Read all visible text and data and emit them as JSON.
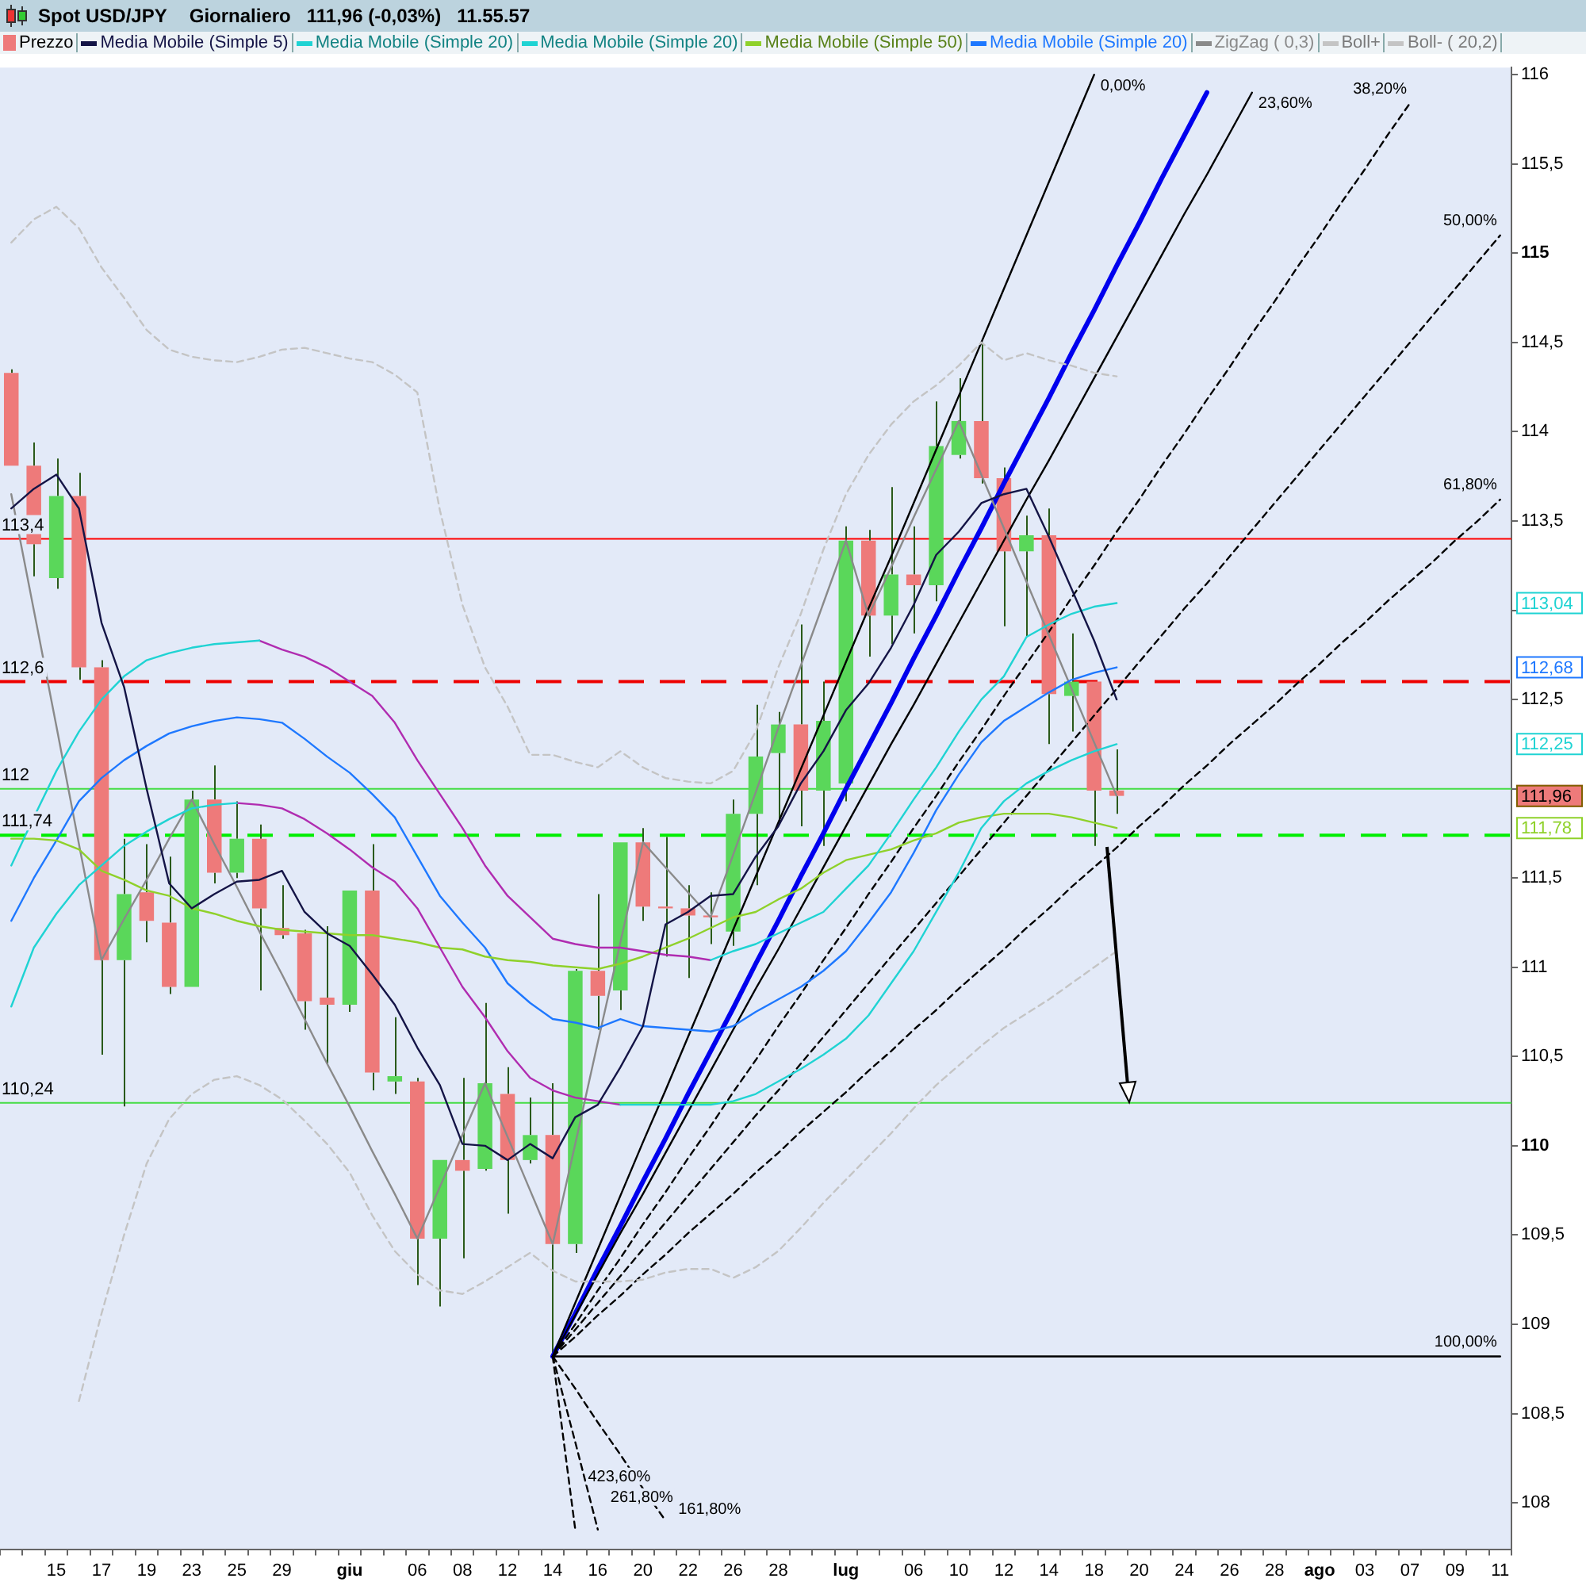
{
  "chart_data": {
    "type": "candlestick",
    "title": "Spot USD/JPY",
    "subtitle": "Giornaliero   111,96 (-0,03%)   11.55.57",
    "legend": "top left",
    "marker": "none",
    "categories": [
      null,
      null,
      "15",
      null,
      "17",
      null,
      "19",
      null,
      "23",
      null,
      "25",
      null,
      "29",
      null,
      null,
      "giu",
      null,
      null,
      "06",
      null,
      "08",
      null,
      "12",
      null,
      "14",
      null,
      "16",
      null,
      "20",
      null,
      "22",
      null,
      "26",
      null,
      "28",
      null,
      null,
      "lug",
      null,
      null,
      "06",
      null,
      "10",
      null,
      "12",
      null,
      "14",
      null,
      "18",
      null,
      "20",
      null,
      "24",
      null,
      "26",
      null,
      "28",
      null,
      "ago",
      null,
      "03",
      null,
      "07",
      null,
      "09",
      null,
      "11"
    ],
    "ylim": [
      107.74,
      116.04
    ],
    "yticks": [
      108,
      {
        "value": 108.5,
        "label": "108,5"
      },
      109,
      {
        "value": 109.5,
        "label": "109,5"
      },
      110,
      {
        "value": 110.5,
        "label": "110,5"
      },
      111,
      {
        "value": 111.5,
        "label": "111,5"
      },
      {
        "value": 112,
        "label": null
      },
      {
        "value": 112.5,
        "label": "112,5"
      },
      {
        "value": 113,
        "label": null
      },
      {
        "value": 113.5,
        "label": "113,5"
      },
      114,
      {
        "value": 114.5,
        "label": "114,5"
      },
      115,
      {
        "value": 115.5,
        "label": "115,5"
      },
      116
    ],
    "annotations": [
      {
        "text": "113,04",
        "y": 113.04
      },
      {
        "text": "112,68",
        "y": 112.68
      },
      {
        "text": "112,25",
        "y": 112.25
      },
      {
        "text": "111,96",
        "y": 111.96
      },
      {
        "text": "111,78",
        "y": 111.78
      }
    ],
    "ref_lines": [
      {
        "axis": "y",
        "value": 113.4,
        "label": "113,4",
        "color": "#ff0000"
      },
      {
        "axis": "y",
        "value": 112.6,
        "label": "112,6",
        "color": "#ee0000",
        "line_style": "dashed"
      },
      {
        "axis": "y",
        "value": 112,
        "label": "112",
        "color": "#44dd44"
      },
      {
        "axis": "y",
        "value": 111.74,
        "label": "111,74",
        "color": "#00ee00",
        "line_style": "dashed"
      },
      {
        "axis": "y",
        "value": 110.24,
        "label": "110,24",
        "color": "#44dd44"
      }
    ],
    "series": [
      {
        "name": "Prezzo",
        "ohlc": [
          [
            114.33,
            114.35,
            113.81,
            113.81
          ],
          [
            113.81,
            113.94,
            113.19,
            113.37
          ],
          [
            113.18,
            113.85,
            113.12,
            113.64
          ],
          [
            113.64,
            113.77,
            112.61,
            112.68
          ],
          [
            112.68,
            112.72,
            110.51,
            111.04
          ],
          [
            111.04,
            111.72,
            110.22,
            111.41
          ],
          [
            111.42,
            111.69,
            111.14,
            111.26
          ],
          [
            111.25,
            111.62,
            110.85,
            110.89
          ],
          [
            110.89,
            111.99,
            110.89,
            111.94
          ],
          [
            111.94,
            112.13,
            111.47,
            111.53
          ],
          [
            111.53,
            111.93,
            111.5,
            111.72
          ],
          [
            111.72,
            111.8,
            110.87,
            111.33
          ],
          [
            111.22,
            111.46,
            111.16,
            111.18
          ],
          [
            111.19,
            111.21,
            110.65,
            110.81
          ],
          [
            110.83,
            111.23,
            110.46,
            110.79
          ],
          [
            110.79,
            111.43,
            110.75,
            111.43
          ],
          [
            111.43,
            111.69,
            110.31,
            110.41
          ],
          [
            110.36,
            110.72,
            110.29,
            110.39
          ],
          [
            110.36,
            110.38,
            109.22,
            109.48
          ],
          [
            109.48,
            109.92,
            109.1,
            109.92
          ],
          [
            109.92,
            110.38,
            109.37,
            109.86
          ],
          [
            109.87,
            110.8,
            109.86,
            110.35
          ],
          [
            110.29,
            110.44,
            109.62,
            109.92
          ],
          [
            109.92,
            110.27,
            109.9,
            110.06
          ],
          [
            110.06,
            110.35,
            108.82,
            109.45
          ],
          [
            109.45,
            110.99,
            109.4,
            110.98
          ],
          [
            110.98,
            111.41,
            110.65,
            110.84
          ],
          [
            110.87,
            111.7,
            110.76,
            111.7
          ],
          [
            111.7,
            111.78,
            111.26,
            111.34
          ],
          [
            111.34,
            111.73,
            111.06,
            111.33
          ],
          [
            111.33,
            111.46,
            110.94,
            111.29
          ],
          [
            111.29,
            111.42,
            111.13,
            111.28
          ],
          [
            111.2,
            111.94,
            111.12,
            111.86
          ],
          [
            111.86,
            112.47,
            111.46,
            112.18
          ],
          [
            112.2,
            112.43,
            111.8,
            112.36
          ],
          [
            112.36,
            112.92,
            111.79,
            111.99
          ],
          [
            111.99,
            112.6,
            111.68,
            112.38
          ],
          [
            112.03,
            113.47,
            111.93,
            113.39
          ],
          [
            113.39,
            113.45,
            112.74,
            112.97
          ],
          [
            112.97,
            113.69,
            112.81,
            113.2
          ],
          [
            113.2,
            113.47,
            112.87,
            113.14
          ],
          [
            113.14,
            114.17,
            113.05,
            113.92
          ],
          [
            113.87,
            114.3,
            113.85,
            114.06
          ],
          [
            114.06,
            114.5,
            113.71,
            113.74
          ],
          [
            113.74,
            113.8,
            112.91,
            113.33
          ],
          [
            113.33,
            113.53,
            112.85,
            113.42
          ],
          [
            113.42,
            113.57,
            112.25,
            112.53
          ],
          [
            112.52,
            112.87,
            112.32,
            112.6
          ],
          [
            112.6,
            112.6,
            111.68,
            111.99
          ],
          [
            111.99,
            112.22,
            111.86,
            111.96
          ],
          null,
          null,
          null,
          null,
          null,
          null,
          null,
          null,
          null,
          null,
          null,
          null,
          null,
          null,
          null,
          null,
          null
        ],
        "colors": [
          "#ee7a7a",
          "#ee7a7a",
          "#5ad75a",
          "#ee7a7a",
          "#ee7a7a",
          "#5ad75a",
          "#ee7a7a",
          "#ee7a7a",
          "#5ad75a",
          "#ee7a7a",
          "#5ad75a",
          "#ee7a7a",
          "#ee7a7a",
          "#ee7a7a",
          "#ee7a7a",
          "#5ad75a",
          "#ee7a7a",
          "#5ad75a",
          "#ee7a7a",
          "#5ad75a",
          "#ee7a7a",
          "#5ad75a",
          "#ee7a7a",
          "#5ad75a",
          "#ee7a7a",
          "#5ad75a",
          "#ee7a7a",
          "#5ad75a",
          "#ee7a7a",
          "#ee7a7a",
          "#ee7a7a",
          "#ee7a7a",
          "#5ad75a",
          "#5ad75a",
          "#5ad75a",
          "#ee7a7a",
          "#5ad75a",
          "#5ad75a",
          "#ee7a7a",
          "#5ad75a",
          "#ee7a7a",
          "#5ad75a",
          "#5ad75a",
          "#ee7a7a",
          "#ee7a7a",
          "#5ad75a",
          "#ee7a7a",
          "#5ad75a",
          "#ee7a7a",
          "#ee7a7a",
          null,
          null,
          null,
          null,
          null,
          null,
          null,
          null,
          null,
          null,
          null,
          null,
          null,
          null,
          null,
          null,
          null
        ]
      },
      {
        "name": "Media Mobile (Simple 5)",
        "type": "line",
        "color": "#141446",
        "values": [
          113.57,
          113.68,
          113.76,
          113.57,
          112.93,
          112.57,
          112.0,
          111.47,
          111.33,
          111.41,
          111.48,
          111.49,
          111.54,
          111.31,
          111.19,
          111.12,
          110.96,
          110.79,
          110.55,
          110.34,
          110.01,
          110.0,
          109.92,
          110.01,
          109.93,
          110.16,
          110.23,
          110.44,
          110.67,
          111.24,
          111.31,
          111.4,
          111.41,
          111.62,
          111.79,
          112.03,
          112.21,
          112.44,
          112.59,
          112.79,
          113.03,
          113.31,
          113.44,
          113.6,
          113.65,
          113.68,
          113.41,
          113.12,
          112.83,
          112.5,
          null,
          null,
          null,
          null,
          null,
          null,
          null,
          null,
          null,
          null,
          null,
          null,
          null,
          null,
          null,
          null,
          null
        ]
      },
      {
        "name": "Media Mobile (Simple 20)",
        "type": "line",
        "color": "#1fd3d3",
        "values": [
          111.57,
          111.84,
          112.1,
          112.32,
          112.5,
          112.63,
          112.72,
          112.76,
          112.79,
          112.81,
          112.82,
          112.83,
          null,
          null,
          null,
          null,
          null,
          null,
          null,
          null,
          null,
          null,
          null,
          null,
          null,
          null,
          null,
          null,
          null,
          null,
          null,
          111.04,
          111.09,
          111.13,
          111.19,
          111.25,
          111.31,
          111.44,
          111.57,
          111.75,
          111.94,
          112.12,
          112.32,
          112.5,
          112.63,
          112.85,
          112.92,
          112.98,
          113.02,
          113.04,
          null,
          null,
          null,
          null,
          null,
          null,
          null,
          null,
          null,
          null,
          null,
          null,
          null,
          null,
          null,
          null,
          null
        ]
      },
      {
        "type": "line",
        "color": "#b02cb0",
        "values": [
          null,
          null,
          null,
          null,
          null,
          null,
          null,
          null,
          null,
          null,
          null,
          112.83,
          112.78,
          112.74,
          112.68,
          112.6,
          112.52,
          112.37,
          112.16,
          111.97,
          111.78,
          111.57,
          111.4,
          111.28,
          111.16,
          111.13,
          111.11,
          111.11,
          111.09,
          111.07,
          111.06,
          111.04,
          null,
          null,
          null,
          null,
          null,
          null,
          null,
          null,
          null,
          null,
          null,
          null,
          null,
          null,
          null,
          null,
          null,
          null,
          null,
          null,
          null,
          null,
          null,
          null,
          null,
          null,
          null,
          null,
          null,
          null,
          null,
          null,
          null,
          null,
          null
        ]
      },
      {
        "name": "Media Mobile (Simple 20)",
        "type": "line",
        "color": "#1fd3d3",
        "values": [
          110.78,
          111.11,
          111.3,
          111.46,
          111.57,
          111.68,
          111.76,
          111.83,
          111.89,
          111.91,
          111.92,
          null,
          null,
          null,
          null,
          null,
          null,
          null,
          null,
          null,
          null,
          null,
          null,
          null,
          null,
          null,
          null,
          110.23,
          110.23,
          110.23,
          110.23,
          110.23,
          110.25,
          110.29,
          110.36,
          110.43,
          110.51,
          110.6,
          110.73,
          110.91,
          111.09,
          111.31,
          111.53,
          111.78,
          111.93,
          112.03,
          112.1,
          112.16,
          112.21,
          112.25,
          null,
          null,
          null,
          null,
          null,
          null,
          null,
          null,
          null,
          null,
          null,
          null,
          null,
          null,
          null,
          null,
          null
        ]
      },
      {
        "type": "line",
        "color": "#b02cb0",
        "values": [
          null,
          null,
          null,
          null,
          null,
          null,
          null,
          null,
          null,
          null,
          111.92,
          111.91,
          111.89,
          111.83,
          111.75,
          111.66,
          111.56,
          111.48,
          111.33,
          111.11,
          110.89,
          110.72,
          110.53,
          110.38,
          110.31,
          110.27,
          110.25,
          110.23,
          null,
          null,
          null,
          null,
          null,
          null,
          null,
          null,
          null,
          null,
          null,
          null,
          null,
          null,
          null,
          null,
          null,
          null,
          null,
          null,
          null,
          null,
          null,
          null,
          null,
          null,
          null,
          null,
          null,
          null,
          null,
          null,
          null,
          null,
          null,
          null,
          null,
          null,
          null
        ]
      },
      {
        "name": "Media Mobile (Simple 50)",
        "type": "line",
        "color": "#8fd12a",
        "values": [
          111.72,
          111.72,
          111.71,
          111.66,
          111.54,
          111.49,
          111.43,
          111.4,
          111.33,
          111.3,
          111.26,
          111.23,
          111.21,
          111.2,
          111.19,
          111.18,
          111.18,
          111.16,
          111.14,
          111.11,
          111.1,
          111.06,
          111.04,
          111.03,
          111.01,
          111.0,
          110.99,
          111.02,
          111.06,
          111.11,
          111.16,
          111.22,
          111.28,
          111.31,
          111.38,
          111.44,
          111.53,
          111.6,
          111.63,
          111.66,
          111.71,
          111.75,
          111.81,
          111.84,
          111.86,
          111.86,
          111.86,
          111.84,
          111.81,
          111.78,
          null,
          null,
          null,
          null,
          null,
          null,
          null,
          null,
          null,
          null,
          null,
          null,
          null,
          null,
          null,
          null,
          null
        ]
      },
      {
        "name": "Media Mobile (Simple 20)",
        "type": "line",
        "color": "#1e78ff",
        "values": [
          111.26,
          111.5,
          111.71,
          111.93,
          112.06,
          112.16,
          112.24,
          112.31,
          112.35,
          112.38,
          112.4,
          112.39,
          112.37,
          112.28,
          112.18,
          112.09,
          111.97,
          111.84,
          111.62,
          111.4,
          111.25,
          111.11,
          110.91,
          110.8,
          110.71,
          110.69,
          110.66,
          110.71,
          110.67,
          110.66,
          110.65,
          110.64,
          110.67,
          110.75,
          110.82,
          110.89,
          110.98,
          111.09,
          111.25,
          111.42,
          111.64,
          111.88,
          112.08,
          112.26,
          112.38,
          112.46,
          112.54,
          112.61,
          112.65,
          112.68,
          null,
          null,
          null,
          null,
          null,
          null,
          null,
          null,
          null,
          null,
          null,
          null,
          null,
          null,
          null,
          null,
          null
        ]
      },
      {
        "name": "ZigZag ( 0,3)",
        "type": "line",
        "color": "#8a8a8a",
        "values": [
          113.65,
          113.0,
          112.35,
          111.69,
          111.04,
          111.27,
          111.49,
          111.72,
          111.94,
          111.69,
          111.45,
          111.2,
          110.96,
          110.71,
          110.46,
          110.22,
          109.97,
          109.73,
          109.48,
          109.77,
          110.06,
          110.35,
          110.05,
          109.75,
          109.45,
          110.01,
          110.58,
          111.14,
          111.7,
          111.56,
          111.42,
          111.28,
          111.63,
          111.98,
          112.34,
          112.69,
          113.04,
          113.39,
          112.97,
          113.24,
          113.52,
          113.79,
          114.06,
          113.76,
          113.46,
          113.16,
          112.86,
          112.56,
          112.26,
          111.96,
          null,
          null,
          null,
          null,
          null,
          null,
          null,
          null,
          null,
          null,
          null,
          null,
          null,
          null,
          null,
          null,
          null
        ]
      },
      {
        "name": "Boll+",
        "type": "line",
        "color": "#c4c4c4",
        "line_style": "dashed",
        "values": [
          115.06,
          115.19,
          115.26,
          115.14,
          114.92,
          114.75,
          114.57,
          114.46,
          114.42,
          114.4,
          114.39,
          114.42,
          114.46,
          114.47,
          114.44,
          114.41,
          114.39,
          114.32,
          114.22,
          113.56,
          113.03,
          112.68,
          112.46,
          112.19,
          112.19,
          112.15,
          112.12,
          112.21,
          112.12,
          112.06,
          112.04,
          112.03,
          112.1,
          112.32,
          112.68,
          112.98,
          113.34,
          113.65,
          113.87,
          114.04,
          114.17,
          114.26,
          114.37,
          114.5,
          114.4,
          114.44,
          114.4,
          114.37,
          114.33,
          114.31,
          null,
          null,
          null,
          null,
          null,
          null,
          null,
          null,
          null,
          null,
          null,
          null,
          null,
          null,
          null,
          null,
          null
        ]
      },
      {
        "name": "Boll- ( 20,2)",
        "type": "line",
        "color": "#c4c4c4",
        "line_style": "dashed",
        "values": [
          null,
          null,
          null,
          108.57,
          109.06,
          109.5,
          109.9,
          110.15,
          110.29,
          110.37,
          110.39,
          110.34,
          110.26,
          110.14,
          110.01,
          109.85,
          109.61,
          109.41,
          109.28,
          109.19,
          109.17,
          109.24,
          109.32,
          109.4,
          109.3,
          109.24,
          109.24,
          109.24,
          109.25,
          109.29,
          109.31,
          109.31,
          109.26,
          109.32,
          109.41,
          109.54,
          109.68,
          109.81,
          109.94,
          110.07,
          110.21,
          110.34,
          110.45,
          110.56,
          110.66,
          110.74,
          110.82,
          110.91,
          111.0,
          111.09,
          null,
          null,
          null,
          null,
          null,
          null,
          null,
          null,
          null,
          null,
          null,
          null,
          null,
          null,
          null,
          null,
          null
        ]
      },
      {
        "name": "0,00%",
        "type": "line",
        "color": "#000000",
        "values": [
          null,
          null,
          null,
          null,
          null,
          null,
          null,
          null,
          null,
          null,
          null,
          null,
          null,
          null,
          null,
          null,
          null,
          null,
          null,
          null,
          null,
          null,
          null,
          null,
          108.82,
          109.12,
          109.42,
          109.72,
          110.02,
          110.31,
          110.61,
          110.91,
          111.21,
          111.51,
          111.81,
          112.11,
          112.41,
          112.71,
          113.01,
          113.3,
          113.6,
          113.9,
          114.2,
          114.5,
          114.8,
          115.1,
          115.4,
          115.7,
          116.0,
          null,
          null,
          null,
          null,
          null,
          null,
          null,
          null,
          null,
          null,
          null,
          null,
          null,
          null,
          null,
          null,
          null,
          null
        ]
      },
      {
        "name": "23,60%",
        "type": "line",
        "color": "#000000",
        "values": [
          null,
          null,
          null,
          null,
          null,
          null,
          null,
          null,
          null,
          null,
          null,
          null,
          null,
          null,
          null,
          null,
          null,
          null,
          null,
          null,
          null,
          null,
          null,
          null,
          108.82,
          109.05,
          109.28,
          109.51,
          109.73,
          109.96,
          110.19,
          110.42,
          110.65,
          110.88,
          111.1,
          111.33,
          111.56,
          111.79,
          112.02,
          112.25,
          112.47,
          112.7,
          112.93,
          113.16,
          113.39,
          113.62,
          113.84,
          114.07,
          114.3,
          114.53,
          114.76,
          114.99,
          115.22,
          115.44,
          115.67,
          115.9,
          null,
          null,
          null,
          null,
          null,
          null,
          null,
          null,
          null,
          null,
          null
        ]
      },
      {
        "name": "38,20%",
        "type": "line",
        "color": "#000000",
        "line_style": "dashed",
        "values": [
          null,
          null,
          null,
          null,
          null,
          null,
          null,
          null,
          null,
          null,
          null,
          null,
          null,
          null,
          null,
          null,
          null,
          null,
          null,
          null,
          null,
          null,
          null,
          null,
          108.82,
          109.0,
          109.19,
          109.37,
          109.56,
          109.74,
          109.93,
          110.11,
          110.3,
          110.48,
          110.67,
          110.85,
          111.04,
          111.22,
          111.41,
          111.59,
          111.78,
          111.96,
          112.15,
          112.33,
          112.52,
          112.7,
          112.88,
          113.07,
          113.25,
          113.44,
          113.62,
          113.81,
          113.99,
          114.18,
          114.36,
          114.55,
          114.73,
          114.92,
          115.1,
          115.29,
          115.47,
          115.66,
          115.84,
          null,
          null,
          null,
          null
        ]
      },
      {
        "name": "50,00%",
        "type": "line",
        "color": "#000000",
        "line_style": "dashed",
        "values": [
          null,
          null,
          null,
          null,
          null,
          null,
          null,
          null,
          null,
          null,
          null,
          null,
          null,
          null,
          null,
          null,
          null,
          null,
          null,
          null,
          null,
          null,
          null,
          null,
          108.82,
          108.97,
          109.12,
          109.27,
          109.42,
          109.57,
          109.72,
          109.87,
          110.02,
          110.17,
          110.31,
          110.46,
          110.61,
          110.76,
          110.91,
          111.06,
          111.21,
          111.36,
          111.51,
          111.66,
          111.81,
          111.96,
          112.11,
          112.26,
          112.41,
          112.56,
          112.71,
          112.86,
          113.01,
          113.15,
          113.3,
          113.45,
          113.6,
          113.75,
          113.9,
          114.05,
          114.2,
          114.35,
          114.5,
          114.65,
          114.8,
          114.95,
          115.1
        ]
      },
      {
        "name": "61,80%",
        "type": "line",
        "color": "#000000",
        "line_style": "dashed",
        "values": [
          null,
          null,
          null,
          null,
          null,
          null,
          null,
          null,
          null,
          null,
          null,
          null,
          null,
          null,
          null,
          null,
          null,
          null,
          null,
          null,
          null,
          null,
          null,
          null,
          108.82,
          108.93,
          109.05,
          109.16,
          109.28,
          109.39,
          109.51,
          109.62,
          109.73,
          109.85,
          109.96,
          110.08,
          110.19,
          110.3,
          110.42,
          110.53,
          110.65,
          110.76,
          110.88,
          110.99,
          111.1,
          111.22,
          111.33,
          111.45,
          111.56,
          111.67,
          111.79,
          111.9,
          112.02,
          112.13,
          112.25,
          112.36,
          112.47,
          112.59,
          112.7,
          112.82,
          112.93,
          113.05,
          113.16,
          113.27,
          113.39,
          113.5,
          113.62
        ]
      },
      {
        "name": "100,00%",
        "type": "line",
        "color": "#000000",
        "values": [
          null,
          null,
          null,
          null,
          null,
          null,
          null,
          null,
          null,
          null,
          null,
          null,
          null,
          null,
          null,
          null,
          null,
          null,
          null,
          null,
          null,
          null,
          null,
          null,
          108.82,
          108.82,
          108.82,
          108.82,
          108.82,
          108.82,
          108.82,
          108.82,
          108.82,
          108.82,
          108.82,
          108.82,
          108.82,
          108.82,
          108.82,
          108.82,
          108.82,
          108.82,
          108.82,
          108.82,
          108.82,
          108.82,
          108.82,
          108.82,
          108.82,
          108.82,
          108.82,
          108.82,
          108.82,
          108.82,
          108.82,
          108.82,
          108.82,
          108.82,
          108.82,
          108.82,
          108.82,
          108.82,
          108.82,
          108.82,
          108.82,
          108.82,
          108.82
        ]
      },
      {
        "name": "161,80%",
        "type": "line",
        "color": "#000000",
        "line_style": "dashed",
        "values": [
          null,
          null,
          null,
          null,
          null,
          null,
          null,
          null,
          null,
          null,
          null,
          null,
          null,
          null,
          null,
          null,
          null,
          null,
          null,
          null,
          null,
          null,
          null,
          null,
          108.82,
          108.64,
          108.45,
          108.27,
          108.08,
          107.9,
          null,
          null,
          null,
          null,
          null,
          null,
          null,
          null,
          null,
          null,
          null,
          null,
          null,
          null,
          null,
          null,
          null,
          null,
          null,
          null,
          null,
          null,
          null,
          null,
          null,
          null,
          null,
          null,
          null,
          null,
          null,
          null,
          null,
          null,
          null,
          null,
          null
        ]
      },
      {
        "name": "261,80%",
        "type": "line",
        "color": "#000000",
        "line_style": "dashed",
        "values": [
          null,
          null,
          null,
          null,
          null,
          null,
          null,
          null,
          null,
          null,
          null,
          null,
          null,
          null,
          null,
          null,
          null,
          null,
          null,
          null,
          null,
          null,
          null,
          null,
          108.82,
          108.34,
          107.85,
          null,
          null,
          null,
          null,
          null,
          null,
          null,
          null,
          null,
          null,
          null,
          null,
          null,
          null,
          null,
          null,
          null,
          null,
          null,
          null,
          null,
          null,
          null,
          null,
          null,
          null,
          null,
          null,
          null,
          null,
          null,
          null,
          null,
          null,
          null,
          null,
          null,
          null,
          null,
          null
        ]
      },
      {
        "name": "423,60%",
        "type": "line",
        "color": "#000000",
        "line_style": "dashed",
        "values": [
          null,
          null,
          null,
          null,
          null,
          null,
          null,
          null,
          null,
          null,
          null,
          null,
          null,
          null,
          null,
          null,
          null,
          null,
          null,
          null,
          null,
          null,
          null,
          null,
          108.82,
          107.85,
          null,
          null,
          null,
          null,
          null,
          null,
          null,
          null,
          null,
          null,
          null,
          null,
          null,
          null,
          null,
          null,
          null,
          null,
          null,
          null,
          null,
          null,
          null,
          null,
          null,
          null,
          null,
          null,
          null,
          null,
          null,
          null,
          null,
          null,
          null,
          null,
          null,
          null,
          null,
          null,
          null
        ]
      },
      {
        "type": "line",
        "color": "#0000ee",
        "values": [
          null,
          null,
          null,
          null,
          null,
          null,
          null,
          null,
          null,
          null,
          null,
          null,
          null,
          null,
          null,
          null,
          null,
          null,
          null,
          null,
          null,
          null,
          null,
          null,
          108.82,
          109.06,
          109.31,
          109.55,
          109.8,
          110.04,
          110.29,
          110.53,
          110.77,
          111.02,
          111.26,
          111.51,
          111.75,
          112.0,
          112.24,
          112.48,
          112.73,
          112.97,
          113.22,
          113.46,
          113.71,
          113.95,
          114.19,
          114.44,
          114.68,
          114.93,
          115.17,
          115.42,
          115.66,
          115.9,
          null,
          null,
          null,
          null,
          null,
          null,
          null,
          null,
          null,
          null,
          null,
          null,
          null
        ]
      }
    ]
  }
}
